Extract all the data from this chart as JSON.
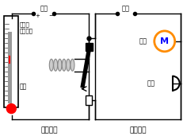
{
  "bg_color": "#ffffff",
  "text_color": "#000000",
  "title_control": "控制电路",
  "title_work": "工作电路",
  "label_power1": "电源",
  "label_power2": "电源",
  "label_wire": "金属丝",
  "label_temp": "设定温度",
  "label_mercury": "水银",
  "label_fan": "风扇",
  "label_bell": "电铃",
  "motor_border_color": "#ff8c00",
  "motor_letter": "M",
  "motor_letter_color": "#0000ff",
  "red_color": "#ff0000",
  "gray_color": "#999999",
  "coil_color": "#888888",
  "coil_face": "#cccccc",
  "lw": 1.0
}
